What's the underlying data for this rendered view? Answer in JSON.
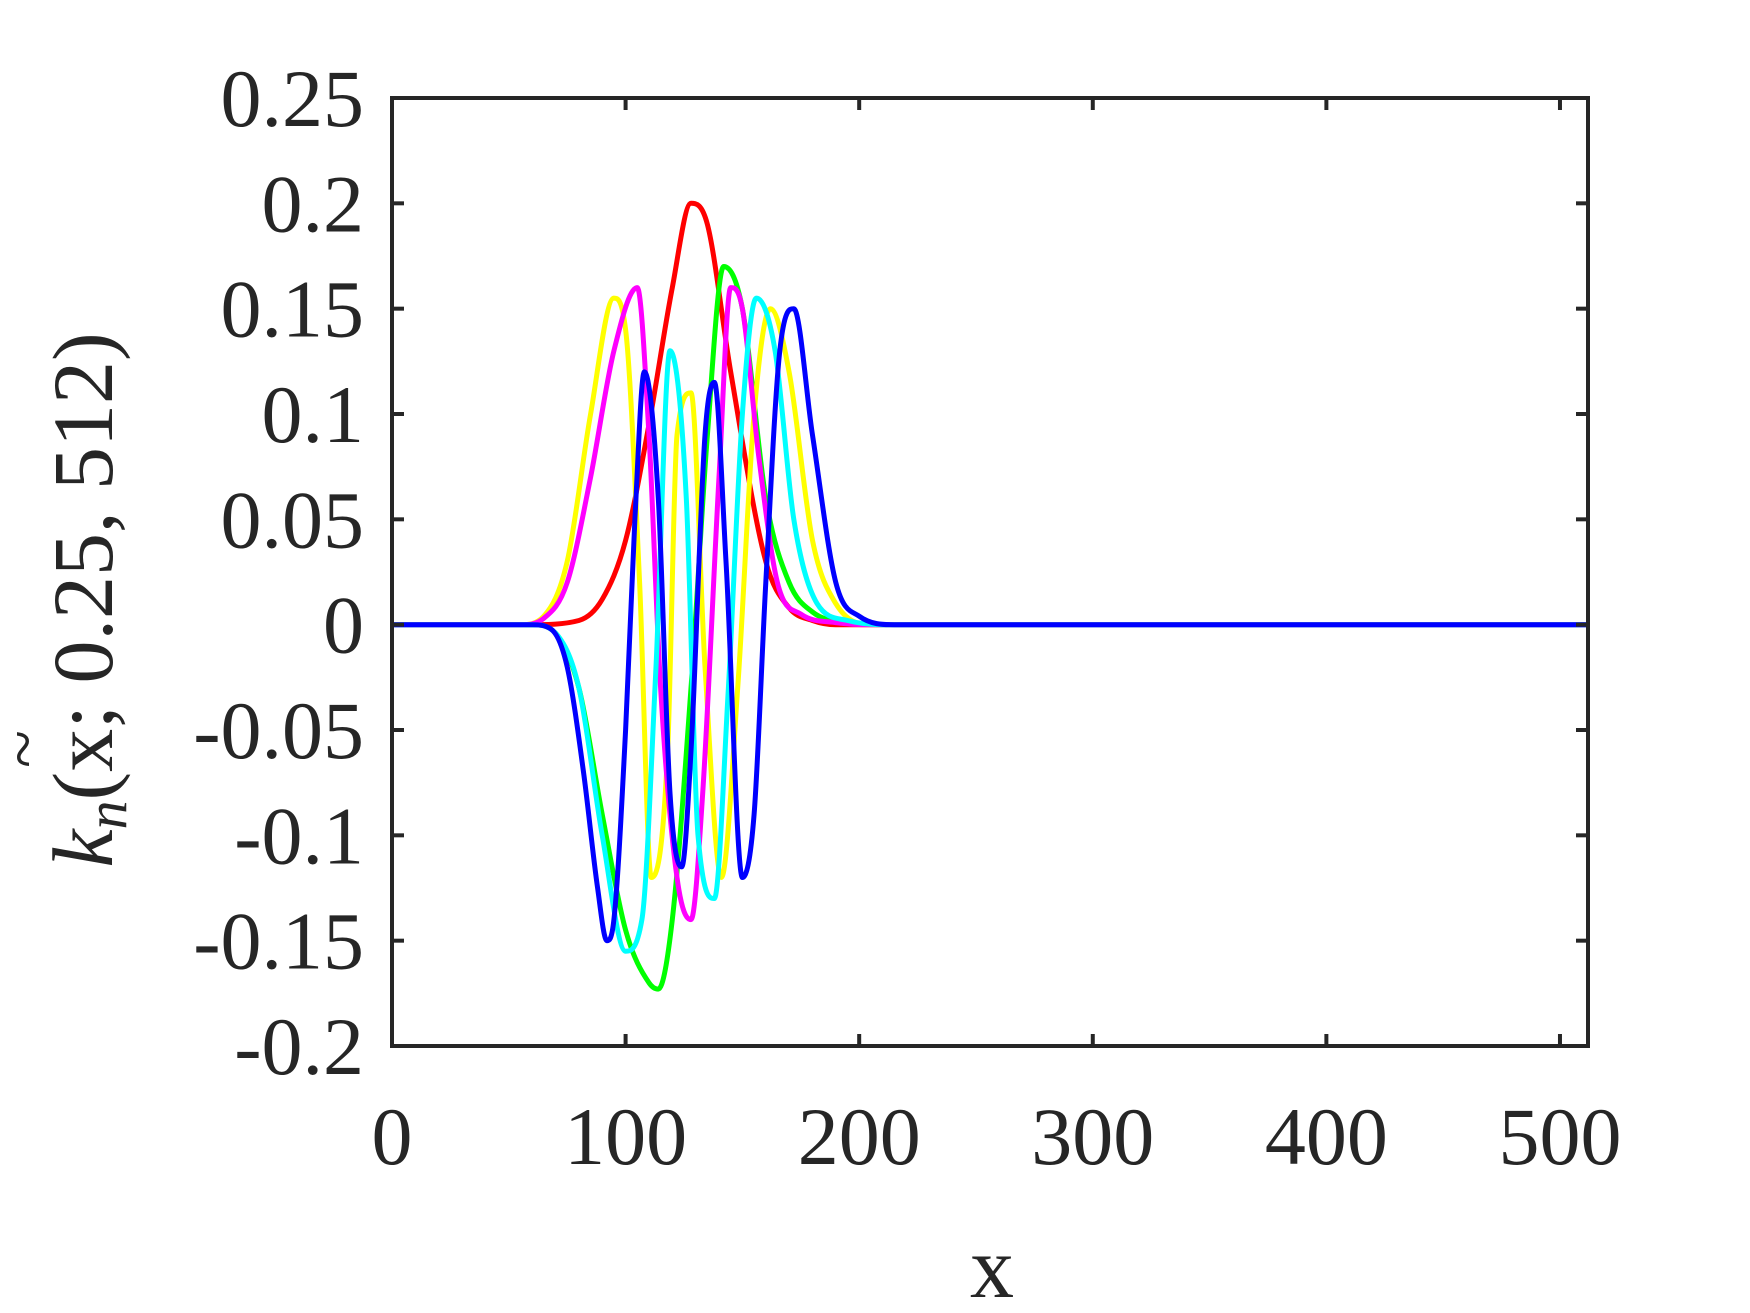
{
  "chart_data": {
    "type": "line",
    "title": "",
    "xlabel": "x",
    "ylabel": {
      "base": "k",
      "accent": "~",
      "subscript": "n",
      "args": "(x; 0.25, 512)"
    },
    "xlim": [
      0,
      512
    ],
    "ylim": [
      -0.2,
      0.25
    ],
    "xticks": [
      0,
      100,
      200,
      300,
      400,
      500
    ],
    "xtick_labels": [
      "0",
      "100",
      "200",
      "300",
      "400",
      "500"
    ],
    "yticks": [
      -0.2,
      -0.15,
      -0.1,
      -0.05,
      0,
      0.05,
      0.1,
      0.15,
      0.2,
      0.25
    ],
    "ytick_labels": [
      "-0.2",
      "-0.15",
      "-0.1",
      "-0.05",
      "0",
      "0.05",
      "0.1",
      "0.15",
      "0.2",
      "0.25"
    ],
    "grid": false,
    "legend": "none",
    "series": [
      {
        "color": "#ff0000",
        "x": [
          0,
          60,
          80,
          90,
          100,
          110,
          120,
          128,
          135,
          145,
          160,
          170,
          180,
          190,
          512
        ],
        "y": [
          0,
          0,
          0.002,
          0.012,
          0.04,
          0.095,
          0.16,
          0.2,
          0.19,
          0.12,
          0.03,
          0.008,
          0.002,
          0,
          0
        ]
      },
      {
        "color": "#00ff00",
        "x": [
          0,
          60,
          70,
          80,
          90,
          100,
          110,
          114,
          120,
          128,
          135,
          142,
          150,
          160,
          170,
          180,
          195,
          210,
          512
        ],
        "y": [
          0,
          0,
          -0.004,
          -0.03,
          -0.09,
          -0.145,
          -0.17,
          -0.173,
          -0.14,
          -0.03,
          0.09,
          0.17,
          0.15,
          0.06,
          0.02,
          0.006,
          0.001,
          0,
          0
        ]
      },
      {
        "color": "#ffff00",
        "x": [
          0,
          55,
          65,
          75,
          85,
          95,
          100,
          106,
          111,
          118,
          122,
          128,
          134,
          141,
          148,
          155,
          162,
          170,
          180,
          190,
          205,
          512
        ],
        "y": [
          0,
          0,
          0.004,
          0.03,
          0.1,
          0.155,
          0.14,
          0.02,
          -0.12,
          -0.06,
          0.09,
          0.11,
          -0.02,
          -0.12,
          -0.03,
          0.1,
          0.15,
          0.12,
          0.04,
          0.01,
          0,
          0
        ]
      },
      {
        "color": "#ff00ff",
        "x": [
          0,
          55,
          65,
          75,
          85,
          95,
          105,
          110,
          115,
          122,
          128,
          133,
          140,
          145,
          150,
          157,
          165,
          175,
          190,
          205,
          512
        ],
        "y": [
          0,
          0,
          0.003,
          0.02,
          0.07,
          0.13,
          0.16,
          0.09,
          -0.03,
          -0.12,
          -0.14,
          -0.08,
          0.07,
          0.16,
          0.15,
          0.08,
          0.02,
          0.005,
          0.001,
          0,
          0
        ]
      },
      {
        "color": "#00ffff",
        "x": [
          0,
          60,
          70,
          80,
          90,
          100,
          107,
          113,
          119,
          126,
          131,
          138,
          144,
          150,
          156,
          164,
          172,
          182,
          195,
          210,
          512
        ],
        "y": [
          0,
          0,
          -0.004,
          -0.03,
          -0.1,
          -0.155,
          -0.14,
          -0.02,
          0.13,
          0.06,
          -0.1,
          -0.13,
          -0.03,
          0.1,
          0.155,
          0.13,
          0.05,
          0.01,
          0.002,
          0,
          0
        ]
      },
      {
        "color": "#0000ff",
        "x": [
          0,
          60,
          68,
          75,
          82,
          88,
          92,
          95,
          100,
          104,
          108,
          114,
          119,
          124,
          128,
          134,
          138,
          143,
          150,
          155,
          160,
          166,
          172,
          180,
          190,
          200,
          215,
          512
        ],
        "y": [
          0,
          0,
          -0.002,
          -0.02,
          -0.07,
          -0.125,
          -0.15,
          -0.14,
          -0.05,
          0.05,
          0.12,
          0.06,
          -0.08,
          -0.115,
          -0.06,
          0.09,
          0.115,
          0.03,
          -0.12,
          -0.09,
          0.02,
          0.13,
          0.15,
          0.09,
          0.02,
          0.004,
          0,
          0
        ]
      }
    ]
  }
}
